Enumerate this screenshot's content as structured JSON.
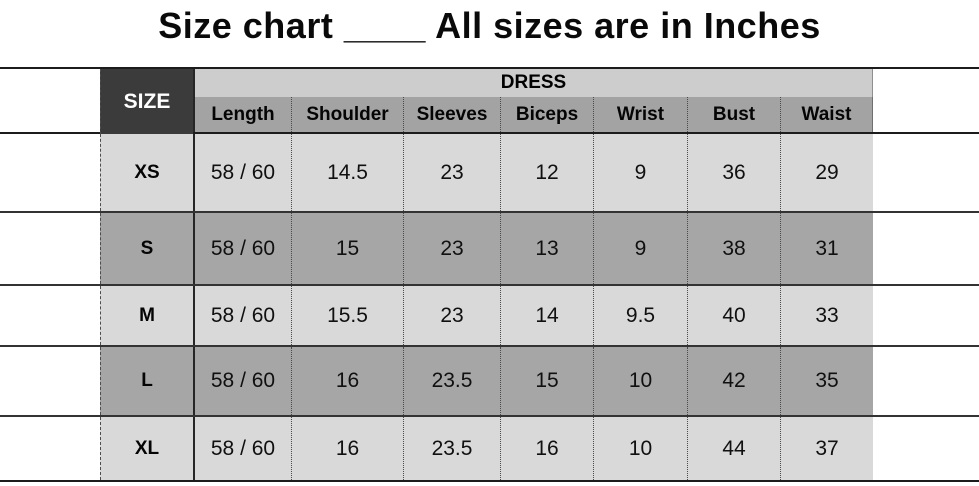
{
  "title": "Size chart ____ All sizes are in Inches",
  "colors": {
    "size_corner_bg": "#3b3b3b",
    "size_corner_text": "#ffffff",
    "group_header_bg": "#cdcdcd",
    "column_header_bg": "#a3a3a3",
    "row_light_bg": "#d9d9d9",
    "row_dark_bg": "#a6a6a6",
    "text": "#000000",
    "grid_line": "#2e2e2e"
  },
  "chart_data": {
    "type": "table",
    "title": "Size chart — All sizes are in Inches",
    "units": "Inches",
    "corner_header": "SIZE",
    "group_header": "DRESS",
    "columns": [
      "Length",
      "Shoulder",
      "Sleeves",
      "Biceps",
      "Wrist",
      "Bust",
      "Waist"
    ],
    "rows": [
      {
        "size": "XS",
        "values": [
          "58 / 60",
          "14.5",
          "23",
          "12",
          "9",
          "36",
          "29"
        ]
      },
      {
        "size": "S",
        "values": [
          "58 / 60",
          "15",
          "23",
          "13",
          "9",
          "38",
          "31"
        ]
      },
      {
        "size": "M",
        "values": [
          "58 / 60",
          "15.5",
          "23",
          "14",
          "9.5",
          "40",
          "33"
        ]
      },
      {
        "size": "L",
        "values": [
          "58 / 60",
          "16",
          "23.5",
          "15",
          "10",
          "42",
          "35"
        ]
      },
      {
        "size": "XL",
        "values": [
          "58 / 60",
          "16",
          "23.5",
          "16",
          "10",
          "44",
          "37"
        ]
      }
    ]
  }
}
